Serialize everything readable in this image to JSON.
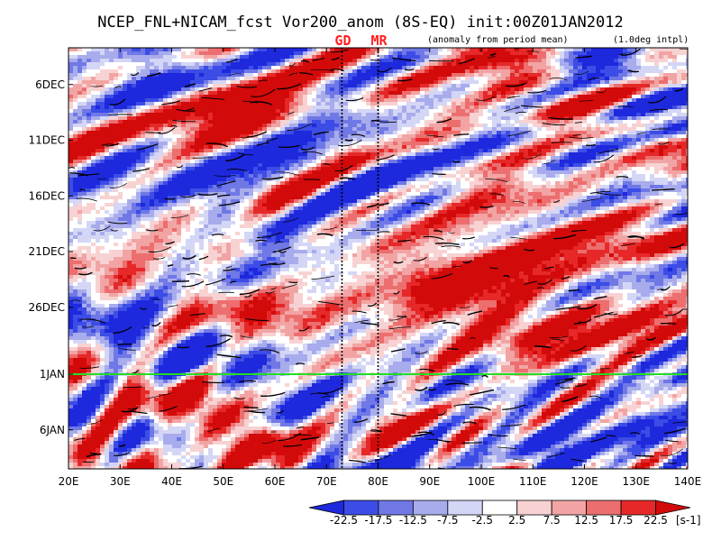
{
  "chart_data": {
    "type": "heatmap",
    "title": "NCEP_FNL+NICAM_fcst Vor200_anom (8S-EQ) init:00Z01JAN2012",
    "subtitle_left": "(anomaly from period mean)",
    "subtitle_right": "(1.0deg intpl)",
    "markers": [
      {
        "label": "GD",
        "lon": 73
      },
      {
        "label": "MR",
        "lon": 80
      }
    ],
    "init_line": {
      "time": "1JAN",
      "color": "#22dd22"
    },
    "x_axis": {
      "range": [
        20,
        140
      ],
      "ticks": [
        20,
        30,
        40,
        50,
        60,
        70,
        80,
        90,
        100,
        110,
        120,
        130,
        140
      ],
      "tick_labels": [
        "20E",
        "30E",
        "40E",
        "50E",
        "60E",
        "70E",
        "80E",
        "90E",
        "100E",
        "110E",
        "120E",
        "130E",
        "140E"
      ]
    },
    "y_axis": {
      "range_days_from_1DEC": [
        1.7,
        39.5
      ],
      "tick_labels": [
        "6DEC",
        "11DEC",
        "16DEC",
        "21DEC",
        "26DEC",
        "1JAN",
        "6JAN"
      ],
      "tick_days_from_1DEC": [
        5,
        10,
        15,
        20,
        25,
        31,
        36
      ]
    },
    "colorbar": {
      "levels": [
        -22.5,
        -17.5,
        -12.5,
        -7.5,
        -2.5,
        2.5,
        7.5,
        12.5,
        17.5,
        22.5
      ],
      "level_labels": [
        "-22.5",
        "-17.5",
        "-12.5",
        "-7.5",
        "-2.5",
        "2.5",
        "7.5",
        "12.5",
        "17.5",
        "22.5"
      ],
      "colors": [
        "#1e28dc",
        "#3c4ce6",
        "#7078e6",
        "#a8acec",
        "#d4d6f6",
        "#ffffff",
        "#f8d2d2",
        "#f2a4a4",
        "#ec6e6e",
        "#e62828",
        "#d20a0a"
      ],
      "unit": "[s-1]"
    },
    "field_description": "Hovmoller diagram of 200hPa vorticity anomaly, longitude vs time, noisy alternating positive (red) and negative (blue) patches"
  }
}
